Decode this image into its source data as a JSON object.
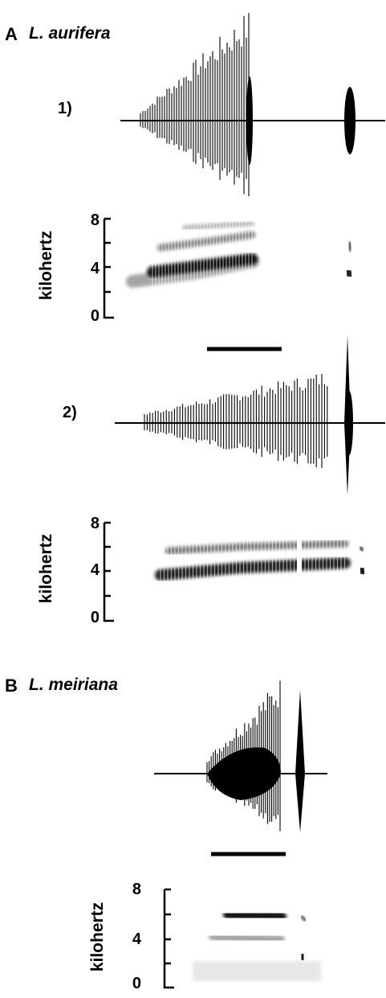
{
  "panel_a": {
    "letter": "A",
    "species": "L. aurifera",
    "rec1_label": "1)",
    "rec2_label": "2)"
  },
  "panel_b": {
    "letter": "B",
    "species": "L. meiriana"
  },
  "spectrogram": {
    "ylabel": "kilohertz",
    "ticks": [
      "8",
      "4",
      "0"
    ]
  }
}
